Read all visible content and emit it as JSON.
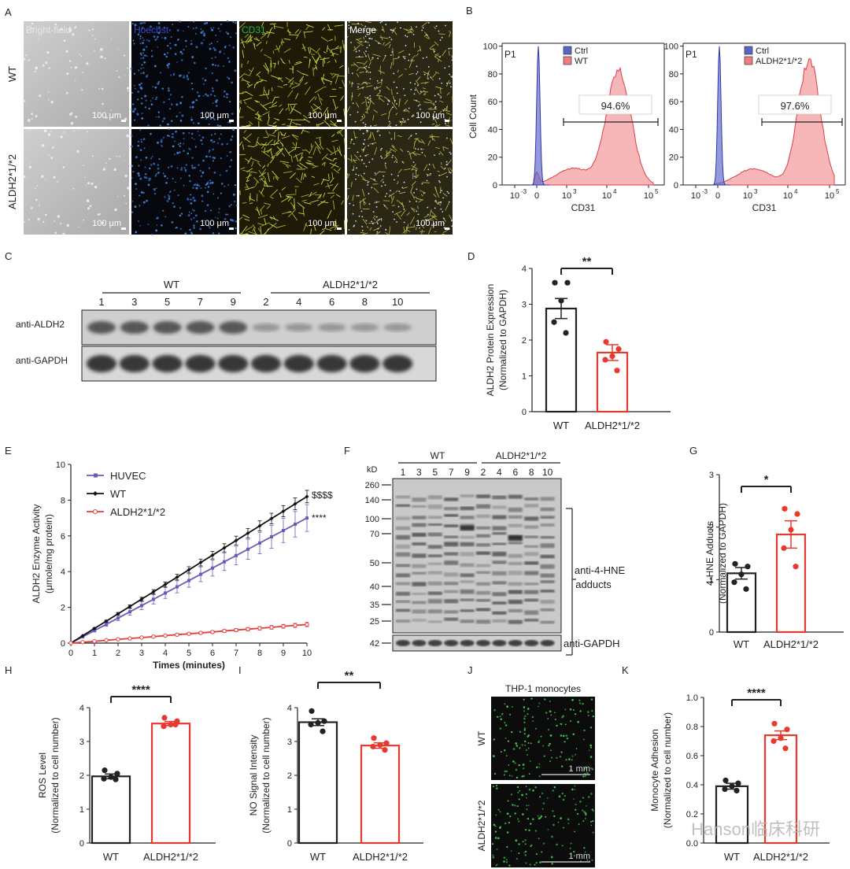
{
  "panels": {
    "A": {
      "letter": "A",
      "channels": [
        "Bright-field",
        "Hoechst",
        "CD31",
        "Merge"
      ],
      "rows": [
        "WT",
        "ALDH2*1/*2"
      ],
      "scale_bar": "100 μm",
      "channel_colors": [
        "#e8e8e8",
        "#3b4ad0",
        "#22b24a",
        "#ffffff"
      ]
    },
    "B": {
      "letter": "B",
      "left": {
        "gate": "P1",
        "legend": [
          "Ctrl",
          "WT"
        ],
        "percent": "94.6%"
      },
      "right": {
        "gate": "P1",
        "legend": [
          "Ctrl",
          "ALDH2*1/*2"
        ],
        "percent": "97.6%"
      },
      "ylabel": "Cell Count",
      "xlabel": "CD31",
      "yticks": [
        "0",
        "20",
        "40",
        "60",
        "80",
        "100"
      ],
      "xticks": [
        {
          "base": "10",
          "exp": "-3"
        },
        {
          "base": "0",
          "exp": ""
        },
        {
          "base": "10",
          "exp": "3"
        },
        {
          "base": "10",
          "exp": "4"
        },
        {
          "base": "10",
          "exp": "5"
        }
      ],
      "ctrl_color": "#5b64c8",
      "sample_color": "#f07c80"
    },
    "C": {
      "letter": "C",
      "group1": "WT",
      "group2": "ALDH2*1/*2",
      "lanes1": [
        "1",
        "3",
        "5",
        "7",
        "9"
      ],
      "lanes2": [
        "2",
        "4",
        "6",
        "8",
        "10"
      ],
      "blot1": "anti-ALDH2",
      "blot2": "anti-GAPDH"
    },
    "F": {
      "letter": "F",
      "kd_label": "kD",
      "group1": "WT",
      "group2": "ALDH2*1/*2",
      "lanes": [
        "1",
        "3",
        "5",
        "7",
        "9",
        "2",
        "4",
        "6",
        "8",
        "10"
      ],
      "markers": [
        "260",
        "140",
        "100",
        "70",
        "50",
        "40",
        "35",
        "25"
      ],
      "gapdh_marker": "42",
      "bracket_label_1": "anti-4-HNE",
      "bracket_label_2": "adducts",
      "gapdh_label": "anti-GAPDH"
    },
    "J": {
      "letter": "J",
      "title": "THP-1 monocytes",
      "rows": [
        "WT",
        "ALDH2*1/*2"
      ],
      "scale_bar": "1 mm"
    }
  },
  "chart_data": [
    {
      "panel": "D",
      "type": "bar",
      "categories": [
        "WT",
        "ALDH2*1/*2"
      ],
      "values": [
        2.88,
        1.65
      ],
      "errors": [
        0.28,
        0.22
      ],
      "points": [
        [
          3.6,
          3.6,
          3.1,
          2.5,
          2.2
        ],
        [
          1.95,
          1.75,
          1.55,
          1.45,
          1.15
        ]
      ],
      "ylabel_1": "ALDH2 Protein Expression",
      "ylabel_2": "(Normalized to GAPDH)",
      "ylim": [
        0,
        4
      ],
      "yticks": [
        "0",
        "1",
        "2",
        "3",
        "4"
      ],
      "significance": "**"
    },
    {
      "panel": "E",
      "type": "line",
      "x": [
        0,
        0.5,
        1,
        1.5,
        2,
        2.5,
        3,
        3.5,
        4,
        4.5,
        5,
        5.5,
        6,
        6.5,
        7,
        7.5,
        8,
        8.5,
        9,
        9.5,
        10
      ],
      "series": [
        {
          "name": "HUVEC",
          "values": [
            0,
            0.35,
            0.7,
            1.05,
            1.4,
            1.75,
            2.1,
            2.45,
            2.8,
            3.15,
            3.5,
            3.85,
            4.2,
            4.55,
            4.9,
            5.25,
            5.6,
            5.95,
            6.3,
            6.65,
            7.0
          ],
          "error": 0.75,
          "color": "#6a5bb8",
          "marker": "square",
          "annotation": "****"
        },
        {
          "name": "WT",
          "values": [
            0,
            0.41,
            0.82,
            1.23,
            1.64,
            2.05,
            2.46,
            2.87,
            3.28,
            3.69,
            4.1,
            4.51,
            4.92,
            5.33,
            5.74,
            6.15,
            6.56,
            6.97,
            7.38,
            7.79,
            8.2
          ],
          "error": 0.35,
          "color": "#111111",
          "marker": "diamond",
          "annotation": "$$$$"
        },
        {
          "name": "ALDH2*1/*2",
          "values": [
            0,
            0.05,
            0.1,
            0.16,
            0.21,
            0.26,
            0.31,
            0.36,
            0.42,
            0.47,
            0.52,
            0.57,
            0.62,
            0.68,
            0.73,
            0.78,
            0.83,
            0.88,
            0.94,
            0.99,
            1.04
          ],
          "error": 0.12,
          "color": "#e23b3b",
          "marker": "circle-open",
          "annotation": ""
        }
      ],
      "xlabel": "Times (minutes)",
      "ylabel_1": "ALDH2 Enzyme Activity",
      "ylabel_2": "(μmole/mg protein)",
      "xlim": [
        0,
        10
      ],
      "ylim": [
        0,
        10
      ],
      "xticks": [
        "0",
        "1",
        "2",
        "3",
        "4",
        "5",
        "6",
        "7",
        "8",
        "9",
        "10"
      ],
      "yticks": [
        "0",
        "2",
        "4",
        "6",
        "8",
        "10"
      ]
    },
    {
      "panel": "G",
      "type": "bar",
      "categories": [
        "WT",
        "ALDH2*1/*2"
      ],
      "values": [
        1.12,
        1.86
      ],
      "errors": [
        0.11,
        0.26
      ],
      "points": [
        [
          1.3,
          1.25,
          1.1,
          0.95,
          0.82
        ],
        [
          2.35,
          2.25,
          1.95,
          1.6,
          1.25
        ]
      ],
      "ylabel_1": "4-HNE Adducts",
      "ylabel_2": "(Normalized to GAPDH)",
      "ylim": [
        0,
        3
      ],
      "yticks": [
        "0",
        "1",
        "2",
        "3"
      ],
      "significance": "*"
    },
    {
      "panel": "H",
      "type": "bar",
      "categories": [
        "WT",
        "ALDH2*1/*2"
      ],
      "values": [
        1.97,
        3.53
      ],
      "errors": [
        0.07,
        0.06
      ],
      "points": [
        [
          2.15,
          2.05,
          1.95,
          1.9,
          1.88
        ],
        [
          3.7,
          3.6,
          3.5,
          3.45,
          3.5
        ]
      ],
      "ylabel_1": "ROS Level",
      "ylabel_2": "(Normalized to cell number)",
      "ylim": [
        0,
        4
      ],
      "yticks": [
        "0",
        "1",
        "2",
        "3",
        "4"
      ],
      "significance": "****"
    },
    {
      "panel": "I",
      "type": "bar",
      "categories": [
        "WT",
        "ALDH2*1/*2"
      ],
      "values": [
        3.57,
        2.88
      ],
      "errors": [
        0.1,
        0.08
      ],
      "points": [
        [
          3.9,
          3.6,
          3.55,
          3.5,
          3.3
        ],
        [
          3.1,
          2.95,
          2.9,
          2.85,
          2.75
        ]
      ],
      "ylabel_1": "NO Signal Intensity",
      "ylabel_2": "(Normalized to cell number)",
      "ylim": [
        0,
        4
      ],
      "yticks": [
        "0",
        "1",
        "2",
        "3",
        "4"
      ],
      "significance": "**"
    },
    {
      "panel": "K",
      "type": "bar",
      "categories": [
        "WT",
        "ALDH2*1/*2"
      ],
      "values": [
        0.39,
        0.74
      ],
      "errors": [
        0.02,
        0.03
      ],
      "points": [
        [
          0.43,
          0.41,
          0.39,
          0.37,
          0.36
        ],
        [
          0.82,
          0.78,
          0.72,
          0.7,
          0.65
        ]
      ],
      "ylabel_1": "Monocyte Adhesion",
      "ylabel_2": "(Normalized to cell number)",
      "ylim": [
        0,
        1.0
      ],
      "yticks": [
        "0.0",
        "0.2",
        "0.4",
        "0.6",
        "0.8",
        "1.0"
      ],
      "significance": "****"
    }
  ],
  "watermark": "Hanson临床科研"
}
